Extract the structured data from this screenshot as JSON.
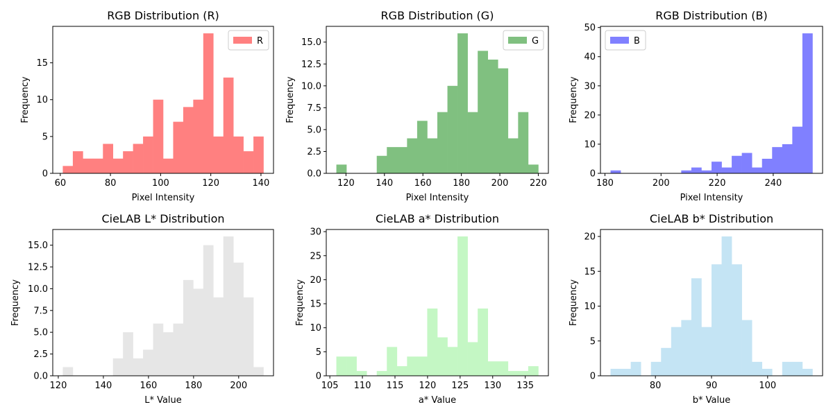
{
  "chart_data": [
    {
      "type": "bar",
      "title": "RGB Distribution (R)",
      "xlabel": "Pixel Intensity",
      "ylabel": "Frequency",
      "bin_start": 61,
      "bin_width": 4,
      "values": [
        1,
        3,
        2,
        2,
        4,
        2,
        3,
        4,
        5,
        10,
        2,
        7,
        9,
        10,
        19,
        5,
        13,
        5,
        3,
        5
      ],
      "xlim": [
        57,
        145
      ],
      "ylim": [
        0,
        19.95
      ],
      "xticks": [
        60,
        80,
        100,
        120,
        140
      ],
      "yticks": [
        0,
        5,
        10,
        15
      ],
      "color": "#ff8080",
      "legend": {
        "label": "R",
        "position": "top-right"
      }
    },
    {
      "type": "bar",
      "title": "RGB Distribution (G)",
      "xlabel": "Pixel Intensity",
      "ylabel": "Frequency",
      "bin_start": 115,
      "bin_width": 5.25,
      "values": [
        1,
        0,
        0,
        0,
        2,
        3,
        3,
        4,
        6,
        4,
        7,
        10,
        16,
        7,
        14,
        13,
        12,
        4,
        7,
        1
      ],
      "xlim": [
        109.75,
        225.25
      ],
      "ylim": [
        0,
        16.8
      ],
      "xticks": [
        120,
        140,
        160,
        180,
        200,
        220
      ],
      "yticks": [
        0.0,
        2.5,
        5.0,
        7.5,
        10.0,
        12.5,
        15.0
      ],
      "color": "#80c080",
      "legend": {
        "label": "G",
        "position": "top-right"
      }
    },
    {
      "type": "bar",
      "title": "RGB Distribution (B)",
      "xlabel": "Pixel Intensity",
      "ylabel": "Frequency",
      "bin_start": 182,
      "bin_width": 3.6,
      "values": [
        1,
        0,
        0,
        0,
        0,
        0,
        0,
        1,
        2,
        1,
        4,
        2,
        6,
        7,
        2,
        5,
        9,
        10,
        16,
        48
      ],
      "xlim": [
        178.4,
        257.6
      ],
      "ylim": [
        0,
        50.4
      ],
      "xticks": [
        180,
        200,
        220,
        240
      ],
      "yticks": [
        0,
        10,
        20,
        30,
        40,
        50
      ],
      "color": "#8080ff",
      "legend": {
        "label": "B",
        "position": "top-left"
      }
    },
    {
      "type": "bar",
      "title": "CieLAB L* Distribution",
      "xlabel": "L* Value",
      "ylabel": "Frequency",
      "bin_start": 122,
      "bin_width": 4.45,
      "values": [
        1,
        0,
        0,
        0,
        0,
        2,
        5,
        2,
        3,
        6,
        5,
        6,
        11,
        10,
        15,
        9,
        16,
        13,
        9,
        1
      ],
      "xlim": [
        117.55,
        215.45
      ],
      "ylim": [
        0,
        16.8
      ],
      "xticks": [
        120,
        140,
        160,
        180,
        200
      ],
      "yticks": [
        0.0,
        2.5,
        5.0,
        7.5,
        10.0,
        12.5,
        15.0
      ],
      "color": "#e6e6e6"
    },
    {
      "type": "bar",
      "title": "CieLAB a* Distribution",
      "xlabel": "a* Value",
      "ylabel": "Frequency",
      "bin_start": 106,
      "bin_width": 1.55,
      "values": [
        4,
        4,
        1,
        0,
        1,
        6,
        2,
        4,
        4,
        14,
        8,
        6,
        29,
        7,
        14,
        3,
        3,
        1,
        1,
        2
      ],
      "xlim": [
        104.45,
        138.55
      ],
      "ylim": [
        0,
        30.45
      ],
      "xticks": [
        105,
        110,
        115,
        120,
        125,
        130,
        135
      ],
      "yticks": [
        0,
        5,
        10,
        15,
        20,
        25,
        30
      ],
      "color": "#c4f7c4"
    },
    {
      "type": "bar",
      "title": "CieLAB b* Distribution",
      "xlabel": "b* Value",
      "ylabel": "Frequency",
      "bin_start": 72,
      "bin_width": 1.8,
      "values": [
        1,
        1,
        2,
        0,
        2,
        4,
        7,
        8,
        14,
        7,
        16,
        20,
        16,
        8,
        2,
        1,
        0,
        2,
        2,
        1
      ],
      "xlim": [
        70.2,
        109.8
      ],
      "ylim": [
        0,
        21
      ],
      "xticks": [
        80,
        90,
        100
      ],
      "yticks": [
        0,
        5,
        10,
        15,
        20
      ],
      "color": "#c4e4f4"
    }
  ]
}
